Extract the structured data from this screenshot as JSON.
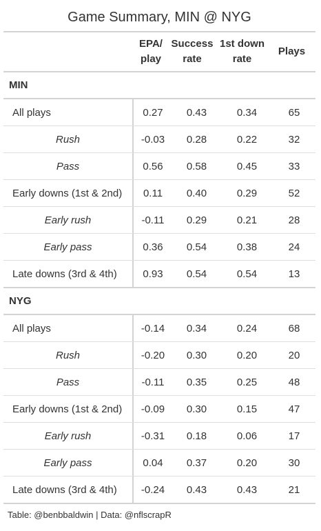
{
  "title": "Game Summary, MIN @ NYG",
  "columns": {
    "epa": [
      "EPA/",
      "play"
    ],
    "success": [
      "Success",
      "rate"
    ],
    "first_down": [
      "1st down",
      "rate"
    ],
    "plays": [
      "Plays"
    ]
  },
  "groups": [
    {
      "name": "MIN",
      "rows": [
        {
          "label": "All plays",
          "sub": false,
          "epa": "0.27",
          "success": "0.43",
          "first_down": "0.34",
          "plays": "65"
        },
        {
          "label": "Rush",
          "sub": true,
          "epa": "-0.03",
          "success": "0.28",
          "first_down": "0.22",
          "plays": "32"
        },
        {
          "label": "Pass",
          "sub": true,
          "epa": "0.56",
          "success": "0.58",
          "first_down": "0.45",
          "plays": "33"
        },
        {
          "label": "Early downs (1st & 2nd)",
          "sub": false,
          "epa": "0.11",
          "success": "0.40",
          "first_down": "0.29",
          "plays": "52"
        },
        {
          "label": "Early rush",
          "sub": true,
          "epa": "-0.11",
          "success": "0.29",
          "first_down": "0.21",
          "plays": "28"
        },
        {
          "label": "Early pass",
          "sub": true,
          "epa": "0.36",
          "success": "0.54",
          "first_down": "0.38",
          "plays": "24"
        },
        {
          "label": "Late downs (3rd & 4th)",
          "sub": false,
          "epa": "0.93",
          "success": "0.54",
          "first_down": "0.54",
          "plays": "13"
        }
      ]
    },
    {
      "name": "NYG",
      "rows": [
        {
          "label": "All plays",
          "sub": false,
          "epa": "-0.14",
          "success": "0.34",
          "first_down": "0.24",
          "plays": "68"
        },
        {
          "label": "Rush",
          "sub": true,
          "epa": "-0.20",
          "success": "0.30",
          "first_down": "0.20",
          "plays": "20"
        },
        {
          "label": "Pass",
          "sub": true,
          "epa": "-0.11",
          "success": "0.35",
          "first_down": "0.25",
          "plays": "48"
        },
        {
          "label": "Early downs (1st & 2nd)",
          "sub": false,
          "epa": "-0.09",
          "success": "0.30",
          "first_down": "0.15",
          "plays": "47"
        },
        {
          "label": "Early rush",
          "sub": true,
          "epa": "-0.31",
          "success": "0.18",
          "first_down": "0.06",
          "plays": "17"
        },
        {
          "label": "Early pass",
          "sub": true,
          "epa": "0.04",
          "success": "0.37",
          "first_down": "0.20",
          "plays": "30"
        },
        {
          "label": "Late downs (3rd & 4th)",
          "sub": false,
          "epa": "-0.24",
          "success": "0.43",
          "first_down": "0.43",
          "plays": "21"
        }
      ]
    }
  ],
  "footer": "Table: @benbbaldwin | Data: @nflscrapR"
}
